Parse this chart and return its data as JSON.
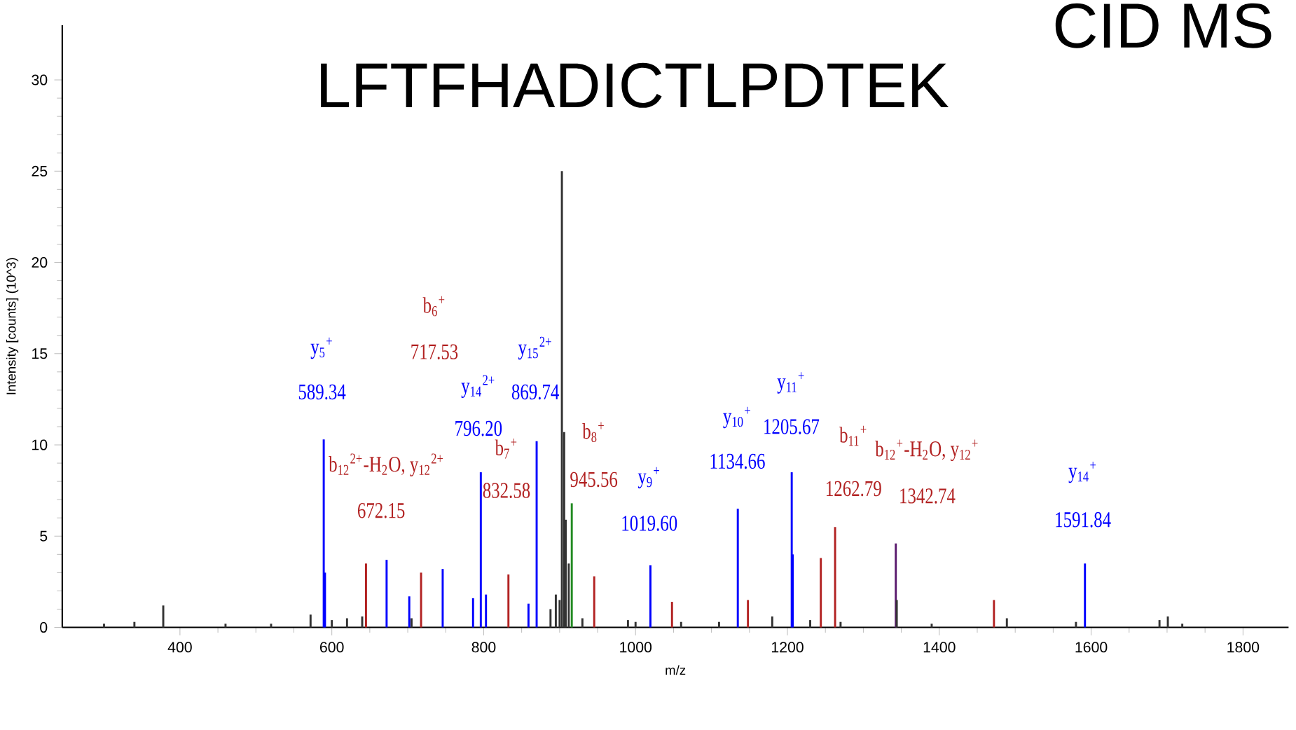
{
  "chart_data": {
    "type": "bar",
    "title": "LFTFHADICTLPDTEK",
    "xlabel": "m/z",
    "ylabel": "Intensity [counts] (10^3)",
    "xlim": [
      245,
      1860
    ],
    "ylim": [
      0,
      33
    ],
    "xticks": [
      400,
      600,
      800,
      1000,
      1200,
      1400,
      1600,
      1800
    ],
    "yticks": [
      0,
      5,
      10,
      15,
      20,
      25,
      30
    ],
    "series": [
      {
        "color": "#0000ff",
        "x": [
          589.34,
          591,
          672.15,
          702,
          746,
          786,
          796.2,
          803,
          859,
          869.74,
          1019.6,
          1134.66,
          1205.67,
          1207,
          1591.84
        ],
        "values": [
          10.3,
          3.0,
          3.7,
          1.7,
          3.2,
          1.6,
          8.5,
          1.8,
          1.3,
          10.2,
          3.4,
          6.5,
          8.5,
          4.0,
          3.5
        ]
      },
      {
        "color": "#b22222",
        "x": [
          645,
          717.53,
          832.58,
          945.56,
          1048,
          1148,
          1244,
          1262.79,
          1472
        ],
        "values": [
          3.5,
          3.0,
          2.9,
          2.8,
          1.4,
          1.5,
          3.8,
          5.5,
          1.5
        ]
      },
      {
        "color": "#5a1a6e",
        "x": [
          1342.74
        ],
        "values": [
          4.6
        ]
      },
      {
        "color": "#228b22",
        "x": [
          916
        ],
        "values": [
          6.8
        ]
      },
      {
        "color": "#333333",
        "x": [
          300,
          340,
          378,
          460,
          520,
          572,
          600,
          620,
          640,
          705,
          888,
          895,
          900,
          903,
          906,
          908,
          912,
          930,
          990,
          1000,
          1060,
          1110,
          1180,
          1230,
          1270,
          1344,
          1390,
          1489,
          1580,
          1690,
          1701,
          1720
        ],
        "values": [
          0.2,
          0.3,
          1.2,
          0.2,
          0.2,
          0.7,
          0.4,
          0.5,
          0.6,
          0.5,
          1.0,
          1.8,
          1.5,
          25.0,
          10.7,
          5.9,
          3.5,
          0.5,
          0.4,
          0.3,
          0.3,
          0.3,
          0.6,
          0.4,
          0.3,
          1.5,
          0.2,
          0.5,
          0.3,
          0.4,
          0.6,
          0.2
        ]
      }
    ],
    "annotations": [
      "CID MS",
      "y$_{5}$$^{+}$",
      "589.34",
      "b$_{6}$$^{+}$",
      "717.53",
      "b$_{12}$$^{2+}$-H$_{2}$O, y$_{12}$$^{2+}$",
      "672.15",
      "y$_{14}$$^{2+}$",
      "796.20",
      "y$_{15}$$^{2+}$",
      "869.74",
      "b$_{7}$$^{+}$",
      "832.58",
      "b$_{8}$$^{+}$",
      "945.56",
      "y$_{9}$$^{+}$",
      "1019.60",
      "y$_{10}$$^{+}$",
      "1134.66",
      "y$_{11}$$^{+}$",
      "1205.67",
      "b$_{11}$$^{+}$",
      "1262.79",
      "b$_{12}$$^{+}$-H$_{2}$O, y$_{12}$$^{+}$",
      "1342.74",
      "y$_{14}$$^{+}$",
      "1591.84"
    ]
  }
}
